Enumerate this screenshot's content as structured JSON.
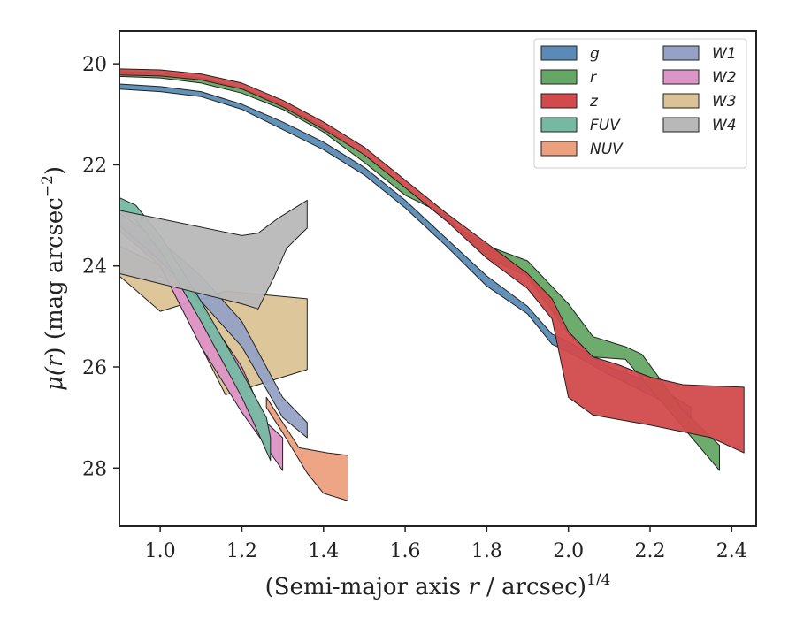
{
  "chart_data": {
    "type": "area",
    "xlabel_prefix": "(Semi-major axis ",
    "xlabel_r": "r",
    "xlabel_mid": " / arcsec)",
    "xlabel_sup": "1/4",
    "ylabel_mu": "μ(",
    "ylabel_r": "r",
    "ylabel_mid": ") (mag arcsec",
    "ylabel_sup": "−2",
    "ylabel_end": ")",
    "xlim": [
      0.9,
      2.46
    ],
    "ylim": [
      29.15,
      19.35
    ],
    "y_inverted": true,
    "xticks": [
      "1.0",
      "1.2",
      "1.4",
      "1.6",
      "1.8",
      "2.0",
      "2.2",
      "2.4"
    ],
    "xtick_values": [
      1.0,
      1.2,
      1.4,
      1.6,
      1.8,
      2.0,
      2.2,
      2.4
    ],
    "yticks": [
      "20",
      "22",
      "24",
      "26",
      "28"
    ],
    "ytick_values": [
      20,
      22,
      24,
      26,
      28
    ],
    "grid": false,
    "legend_position": "top-right",
    "legend_columns": 2,
    "series": [
      {
        "name": "W3",
        "color": "#dcc396",
        "upper": [
          [
            0.9,
            24.2
          ],
          [
            1.0,
            24.9
          ],
          [
            1.16,
            24.5
          ],
          [
            1.36,
            24.65
          ]
        ],
        "lower": [
          [
            0.9,
            23.6
          ],
          [
            1.0,
            24.0
          ],
          [
            1.16,
            26.55
          ],
          [
            1.36,
            26.05
          ]
        ]
      },
      {
        "name": "W2",
        "color": "#dd94c6",
        "upper": [
          [
            0.9,
            23.1
          ],
          [
            1.0,
            23.6
          ],
          [
            1.1,
            24.8
          ],
          [
            1.2,
            26.0
          ],
          [
            1.26,
            27.1
          ],
          [
            1.3,
            27.4
          ]
        ],
        "lower": [
          [
            0.9,
            23.3
          ],
          [
            1.0,
            24.0
          ],
          [
            1.1,
            25.6
          ],
          [
            1.2,
            26.9
          ],
          [
            1.24,
            27.35
          ],
          [
            1.3,
            28.05
          ]
        ]
      },
      {
        "name": "W1",
        "color": "#95a2c5",
        "upper": [
          [
            0.9,
            22.95
          ],
          [
            1.0,
            23.5
          ],
          [
            1.1,
            24.2
          ],
          [
            1.2,
            25.1
          ],
          [
            1.3,
            26.6
          ],
          [
            1.36,
            27.1
          ]
        ],
        "lower": [
          [
            0.9,
            23.2
          ],
          [
            1.0,
            23.9
          ],
          [
            1.1,
            24.7
          ],
          [
            1.2,
            25.6
          ],
          [
            1.3,
            27.0
          ],
          [
            1.36,
            27.4
          ]
        ]
      },
      {
        "name": "FUV",
        "color": "#76b9a3",
        "upper": [
          [
            0.9,
            22.65
          ],
          [
            0.94,
            22.8
          ],
          [
            1.0,
            23.4
          ],
          [
            1.1,
            24.7
          ],
          [
            1.2,
            26.1
          ],
          [
            1.26,
            27.0
          ],
          [
            1.27,
            27.4
          ]
        ],
        "lower": [
          [
            0.9,
            22.9
          ],
          [
            0.94,
            23.1
          ],
          [
            1.0,
            23.7
          ],
          [
            1.1,
            25.1
          ],
          [
            1.2,
            26.6
          ],
          [
            1.24,
            27.3
          ],
          [
            1.27,
            27.85
          ]
        ]
      },
      {
        "name": "NUV",
        "color": "#eca07e",
        "upper": [
          [
            1.26,
            26.6
          ],
          [
            1.34,
            27.6
          ],
          [
            1.41,
            27.7
          ],
          [
            1.46,
            27.75
          ]
        ],
        "lower": [
          [
            1.26,
            26.8
          ],
          [
            1.3,
            27.3
          ],
          [
            1.36,
            28.1
          ],
          [
            1.4,
            28.5
          ],
          [
            1.46,
            28.65
          ]
        ]
      },
      {
        "name": "W4",
        "color": "#b8b8b8",
        "upper": [
          [
            0.9,
            22.9
          ],
          [
            1.2,
            23.4
          ],
          [
            1.24,
            23.35
          ],
          [
            1.29,
            23.05
          ],
          [
            1.36,
            22.7
          ]
        ],
        "lower": [
          [
            0.9,
            24.15
          ],
          [
            1.2,
            24.75
          ],
          [
            1.24,
            24.85
          ],
          [
            1.28,
            24.2
          ],
          [
            1.31,
            23.65
          ],
          [
            1.36,
            23.25
          ]
        ]
      },
      {
        "name": "g",
        "color": "#5a8bb6",
        "upper": [
          [
            0.9,
            20.4
          ],
          [
            1.0,
            20.45
          ],
          [
            1.1,
            20.55
          ],
          [
            1.2,
            20.8
          ],
          [
            1.3,
            21.15
          ],
          [
            1.4,
            21.55
          ],
          [
            1.5,
            22.05
          ],
          [
            1.6,
            22.7
          ],
          [
            1.7,
            23.45
          ],
          [
            1.8,
            24.2
          ],
          [
            1.9,
            24.8
          ],
          [
            1.96,
            25.35
          ],
          [
            2.0,
            25.5
          ],
          [
            2.1,
            26.0
          ],
          [
            2.2,
            26.3
          ],
          [
            2.3,
            26.8
          ]
        ],
        "lower": [
          [
            0.9,
            20.5
          ],
          [
            1.0,
            20.55
          ],
          [
            1.1,
            20.65
          ],
          [
            1.2,
            20.9
          ],
          [
            1.3,
            21.3
          ],
          [
            1.4,
            21.7
          ],
          [
            1.5,
            22.2
          ],
          [
            1.6,
            22.85
          ],
          [
            1.7,
            23.6
          ],
          [
            1.8,
            24.4
          ],
          [
            1.9,
            24.95
          ],
          [
            1.96,
            25.55
          ],
          [
            2.0,
            25.7
          ],
          [
            2.1,
            26.15
          ],
          [
            2.2,
            26.55
          ],
          [
            2.3,
            27.0
          ]
        ]
      },
      {
        "name": "r",
        "color": "#65a865",
        "upper": [
          [
            0.9,
            20.15
          ],
          [
            1.0,
            20.18
          ],
          [
            1.1,
            20.28
          ],
          [
            1.2,
            20.48
          ],
          [
            1.3,
            20.8
          ],
          [
            1.4,
            21.25
          ],
          [
            1.5,
            21.8
          ],
          [
            1.6,
            22.45
          ],
          [
            1.7,
            23.1
          ],
          [
            1.8,
            23.6
          ],
          [
            1.9,
            23.9
          ],
          [
            2.0,
            24.75
          ],
          [
            2.06,
            25.4
          ],
          [
            2.14,
            25.6
          ],
          [
            2.18,
            25.75
          ],
          [
            2.28,
            26.85
          ],
          [
            2.37,
            27.55
          ]
        ],
        "lower": [
          [
            0.9,
            20.25
          ],
          [
            1.0,
            20.28
          ],
          [
            1.1,
            20.38
          ],
          [
            1.2,
            20.58
          ],
          [
            1.3,
            20.9
          ],
          [
            1.4,
            21.35
          ],
          [
            1.5,
            21.95
          ],
          [
            1.6,
            22.6
          ],
          [
            1.7,
            23.0
          ],
          [
            1.8,
            23.85
          ],
          [
            1.9,
            24.2
          ],
          [
            2.0,
            25.35
          ],
          [
            2.06,
            25.8
          ],
          [
            2.14,
            25.85
          ],
          [
            2.25,
            26.9
          ],
          [
            2.37,
            28.05
          ]
        ]
      },
      {
        "name": "z",
        "color": "#d24a4c",
        "upper": [
          [
            0.9,
            20.1
          ],
          [
            1.0,
            20.12
          ],
          [
            1.1,
            20.2
          ],
          [
            1.2,
            20.38
          ],
          [
            1.3,
            20.72
          ],
          [
            1.4,
            21.15
          ],
          [
            1.5,
            21.65
          ],
          [
            1.6,
            22.3
          ],
          [
            1.7,
            22.95
          ],
          [
            1.8,
            23.55
          ],
          [
            1.9,
            24.15
          ],
          [
            1.96,
            24.65
          ],
          [
            2.0,
            25.3
          ],
          [
            2.06,
            25.8
          ],
          [
            2.12,
            25.95
          ],
          [
            2.2,
            26.2
          ],
          [
            2.28,
            26.35
          ],
          [
            2.43,
            26.4
          ]
        ],
        "lower": [
          [
            0.9,
            20.22
          ],
          [
            1.0,
            20.24
          ],
          [
            1.1,
            20.32
          ],
          [
            1.2,
            20.5
          ],
          [
            1.3,
            20.85
          ],
          [
            1.4,
            21.3
          ],
          [
            1.5,
            21.8
          ],
          [
            1.6,
            22.45
          ],
          [
            1.7,
            23.1
          ],
          [
            1.8,
            23.85
          ],
          [
            1.9,
            24.45
          ],
          [
            1.96,
            25.05
          ],
          [
            2.0,
            26.6
          ],
          [
            2.06,
            26.95
          ],
          [
            2.2,
            27.15
          ],
          [
            2.35,
            27.4
          ],
          [
            2.43,
            27.7
          ]
        ]
      }
    ],
    "legend": [
      {
        "name": "g",
        "color": "#5a8bb6"
      },
      {
        "name": "r",
        "color": "#65a865"
      },
      {
        "name": "z",
        "color": "#d24a4c"
      },
      {
        "name": "FUV",
        "color": "#76b9a3"
      },
      {
        "name": "NUV",
        "color": "#eca07e"
      },
      {
        "name": "W1",
        "color": "#95a2c5"
      },
      {
        "name": "W2",
        "color": "#dd94c6"
      },
      {
        "name": "W3",
        "color": "#dcc396"
      },
      {
        "name": "W4",
        "color": "#b8b8b8"
      }
    ]
  }
}
